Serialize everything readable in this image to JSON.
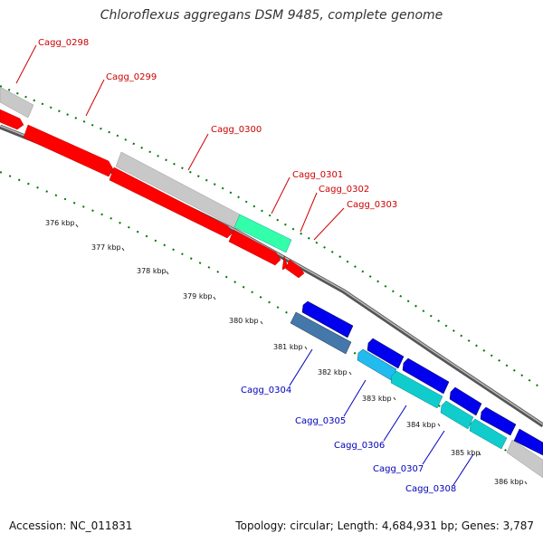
{
  "title": "Chloroflexus aggregans DSM 9485, complete genome",
  "footer": {
    "accession": "Accession: NC_011831",
    "summary": "Topology: circular; Length: 4,684,931 bp; Genes: 3,787"
  },
  "colors": {
    "forward_label": "#cc0000",
    "reverse_label": "#0000bb",
    "backbone": "#888888",
    "gc_track": "#007700"
  },
  "forward_genes": [
    {
      "id": "Cagg_0298",
      "color": "#c8c8c8"
    },
    {
      "id": "Cagg_0299",
      "color": "#ff0000"
    },
    {
      "id": "Cagg_0300",
      "color": "#c8c8c8"
    },
    {
      "id": "Cagg_0301",
      "color": "#33ffaa"
    },
    {
      "id": "Cagg_0302",
      "color": "#ff0000"
    },
    {
      "id": "Cagg_0303",
      "color": "#ff0000"
    }
  ],
  "reverse_genes": [
    {
      "id": "Cagg_0304",
      "color": "#4477aa"
    },
    {
      "id": "Cagg_0305",
      "color": "#22bbee"
    },
    {
      "id": "Cagg_0306",
      "color": "#11cccc"
    },
    {
      "id": "Cagg_0307",
      "color": "#11cccc"
    },
    {
      "id": "Cagg_0308",
      "color": "#11cccc"
    }
  ],
  "scale_ticks": [
    "376 kbp",
    "377 kbp",
    "378 kbp",
    "379 kbp",
    "380 kbp",
    "381 kbp",
    "382 kbp",
    "383 kbp",
    "384 kbp",
    "385 kbp",
    "386 kbp"
  ]
}
